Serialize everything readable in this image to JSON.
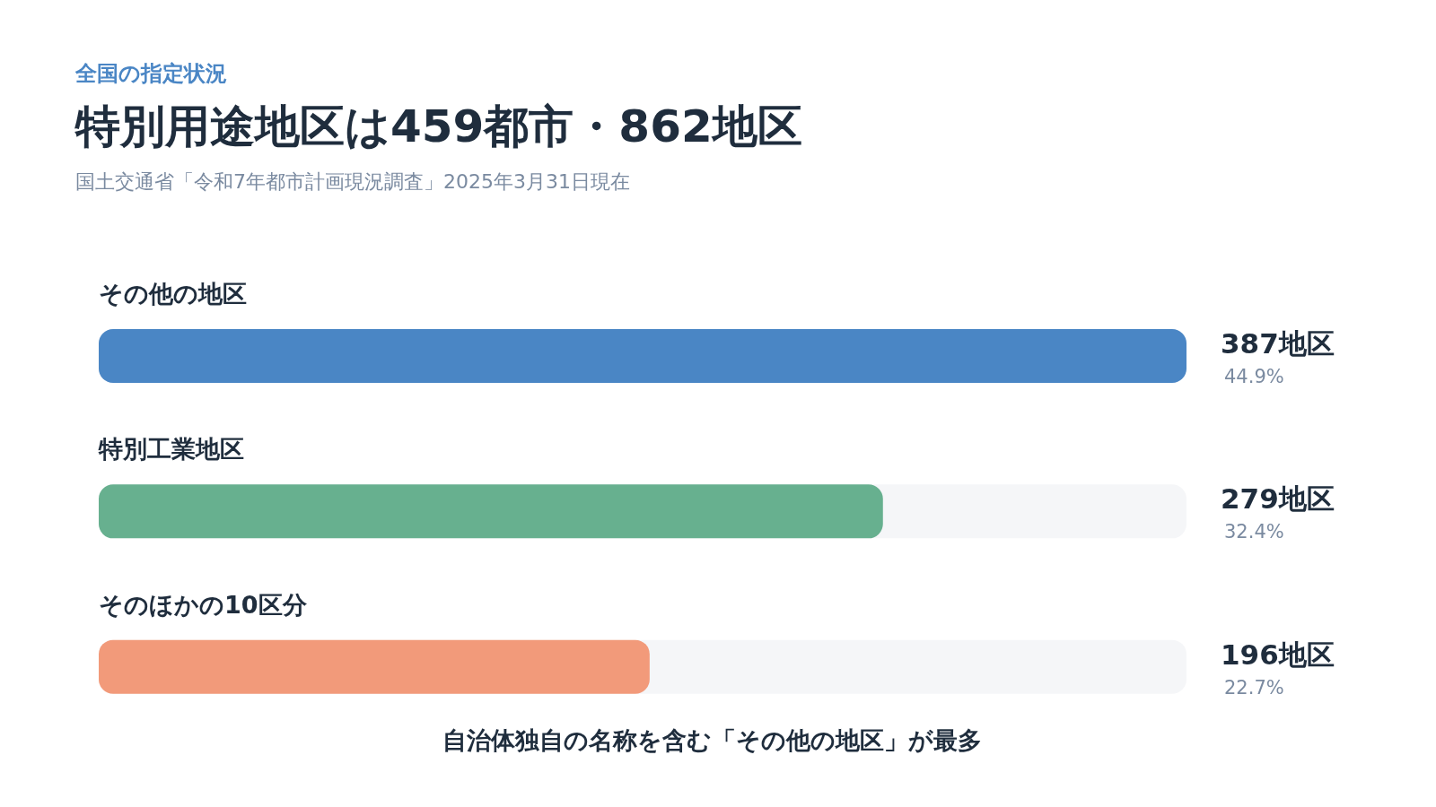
{
  "chart_data": {
    "type": "bar",
    "orientation": "horizontal",
    "subtitle": "全国の指定状況",
    "title": "特別用途地区は459都市・862地区",
    "categories": [
      "その他の地区",
      "特別工業地区",
      "そのほかの10区分"
    ],
    "values": [
      387,
      279,
      196
    ],
    "colors": [
      "#4a86c5",
      "#67b08f",
      "#f29a7a"
    ],
    "value_labels": [
      "387地区",
      "279地区",
      "196地区"
    ],
    "annotations": [
      "国土交通省「令和7年都市計画現況調査」2025年3月31日現在",
      "44.9%",
      "32.4%",
      "22.7%",
      "自治体独自の名称を含む「その他の地区」が最多"
    ],
    "grid": false,
    "legend": false
  }
}
